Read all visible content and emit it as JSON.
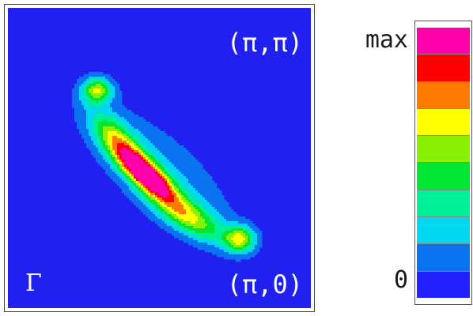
{
  "chart_data": {
    "type": "heatmap",
    "corner_labels": {
      "top_right": "(π,π)",
      "bottom_right": "(π,0)",
      "bottom_left": "Γ"
    },
    "colorbar": {
      "max_label": "max",
      "min_label": "0",
      "levels": [
        "#ff00aa",
        "#ff0000",
        "#ff7a00",
        "#ffff00",
        "#8af000",
        "#00e632",
        "#00f096",
        "#00d8f0",
        "#0a74f0",
        "#2222ff"
      ]
    },
    "background_color": "#2020f0",
    "features": [
      {
        "kind": "hotspot",
        "x": 0.46,
        "y": 0.56,
        "sx": 0.085,
        "sy": 0.03,
        "angle": 42,
        "amplitude": 1.0
      },
      {
        "kind": "arc-segment",
        "x": 0.36,
        "y": 0.44,
        "sx": 0.08,
        "sy": 0.035,
        "angle": 48,
        "amplitude": 0.45
      },
      {
        "kind": "arc-segment",
        "x": 0.6,
        "y": 0.7,
        "sx": 0.09,
        "sy": 0.035,
        "angle": 30,
        "amplitude": 0.45
      },
      {
        "kind": "spot",
        "x": 0.295,
        "y": 0.275,
        "sx": 0.035,
        "sy": 0.03,
        "angle": 0,
        "amplitude": 0.55
      },
      {
        "kind": "spot",
        "x": 0.765,
        "y": 0.77,
        "sx": 0.035,
        "sy": 0.03,
        "angle": 0,
        "amplitude": 0.55
      },
      {
        "kind": "halo",
        "x": 0.5,
        "y": 0.55,
        "sx": 0.24,
        "sy": 0.09,
        "angle": 42,
        "amplitude": 0.22
      },
      {
        "kind": "faint-band",
        "x": 0.55,
        "y": 0.35,
        "sx": 0.5,
        "sy": 0.03,
        "angle": 45,
        "amplitude": 0.04
      }
    ]
  }
}
